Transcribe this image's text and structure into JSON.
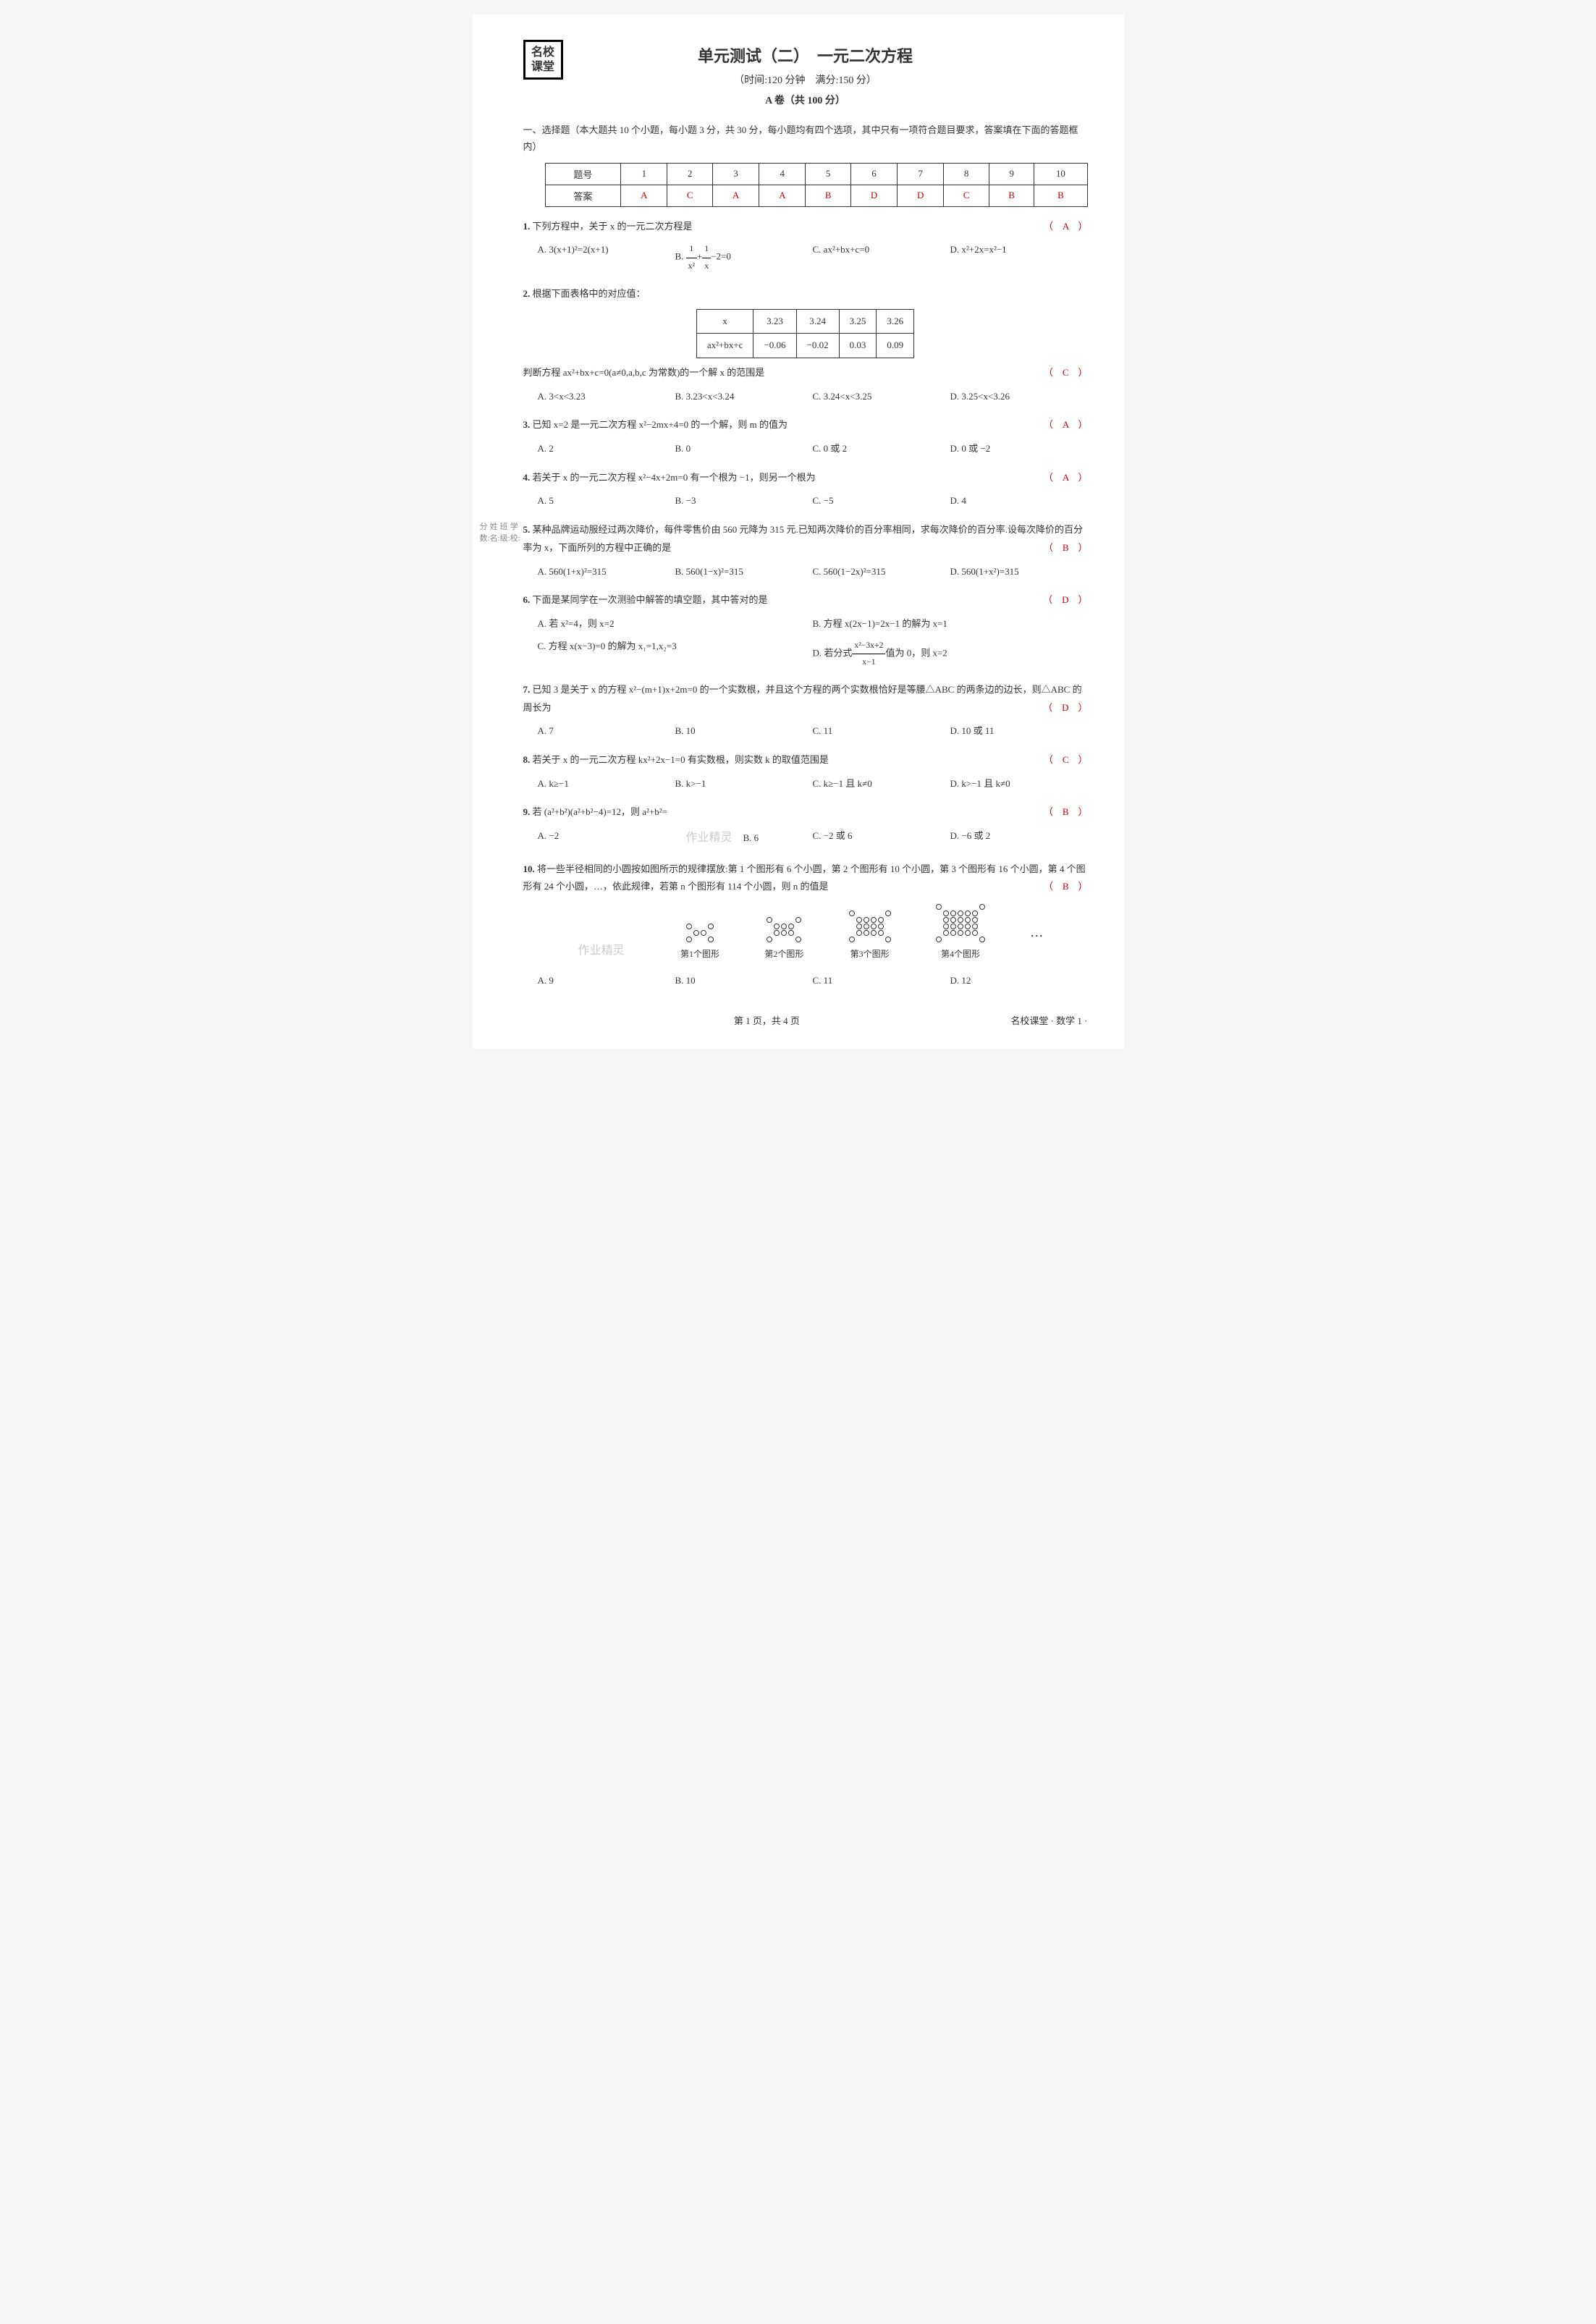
{
  "logo": "名校\n课堂",
  "title": "单元测试（二）　一元二次方程",
  "time_score": "（时间:120 分钟　满分:150 分）",
  "paper_a": "A 卷（共 100 分）",
  "section1_intro": "一、选择题（本大题共 10 个小题，每小题 3 分，共 30 分，每小题均有四个选项，其中只有一项符合题目要求，答案填在下面的答题框内）",
  "answer_table": {
    "header_label": "题号",
    "answer_label": "答案",
    "numbers": [
      "1",
      "2",
      "3",
      "4",
      "5",
      "6",
      "7",
      "8",
      "9",
      "10"
    ],
    "answers": [
      "A",
      "C",
      "A",
      "A",
      "B",
      "D",
      "D",
      "C",
      "B",
      "B"
    ]
  },
  "q1": {
    "num": "1.",
    "text": "下列方程中，关于 x 的一元二次方程是",
    "answer": "（　A　）",
    "optA": "A. 3(x+1)²=2(x+1)",
    "optB_pre": "B. ",
    "optB_f1n": "1",
    "optB_f1d": "x²",
    "optB_mid": "+",
    "optB_f2n": "1",
    "optB_f2d": "x",
    "optB_post": "−2=0",
    "optC": "C. ax²+bx+c=0",
    "optD": "D. x²+2x=x²−1"
  },
  "q2": {
    "num": "2.",
    "text": "根据下面表格中的对应值：",
    "table_h": "x",
    "table_row2_h": "ax²+bx+c",
    "x_vals": [
      "3.23",
      "3.24",
      "3.25",
      "3.26"
    ],
    "y_vals": [
      "−0.06",
      "−0.02",
      "0.03",
      "0.09"
    ],
    "text2": "判断方程 ax²+bx+c=0(a≠0,a,b,c 为常数)的一个解 x 的范围是",
    "answer": "（　C　）",
    "optA": "A. 3<x<3.23",
    "optB": "B. 3.23<x<3.24",
    "optC": "C. 3.24<x<3.25",
    "optD": "D. 3.25<x<3.26"
  },
  "q3": {
    "num": "3.",
    "text": "已知 x=2 是一元二次方程 x²−2mx+4=0 的一个解，则 m 的值为",
    "answer": "（　A　）",
    "optA": "A. 2",
    "optB": "B. 0",
    "optC": "C. 0 或 2",
    "optD": "D. 0 或 −2"
  },
  "q4": {
    "num": "4.",
    "text": "若关于 x 的一元二次方程 x²−4x+2m=0 有一个根为 −1，则另一个根为",
    "answer": "（　A　）",
    "optA": "A. 5",
    "optB": "B. −3",
    "optC": "C. −5",
    "optD": "D. 4"
  },
  "q5": {
    "num": "5.",
    "text": "某种品牌运动服经过两次降价，每件零售价由 560 元降为 315 元.已知两次降价的百分率相同，求每次降价的百分率.设每次降价的百分率为 x，下面所列的方程中正确的是",
    "answer": "（　B　）",
    "optA": "A. 560(1+x)²=315",
    "optB": "B. 560(1−x)²=315",
    "optC": "C. 560(1−2x)²=315",
    "optD": "D. 560(1+x²)=315"
  },
  "q6": {
    "num": "6.",
    "text": "下面是某同学在一次测验中解答的填空题，其中答对的是",
    "answer": "（　D　）",
    "optA": "A. 若 x²=4，则 x=2",
    "optB": "B. 方程 x(2x−1)=2x−1 的解为 x=1",
    "optC": "C. 方程 x(x−3)=0 的解为 x₁=1,x₂=3",
    "optD_pre": "D. 若分式",
    "optD_fn": "x²−3x+2",
    "optD_fd": "x−1",
    "optD_post": "值为 0，则 x=2"
  },
  "q7": {
    "num": "7.",
    "text": "已知 3 是关于 x 的方程 x²−(m+1)x+2m=0 的一个实数根，并且这个方程的两个实数根恰好是等腰△ABC 的两条边的边长，则△ABC 的周长为",
    "answer": "（　D　）",
    "optA": "A. 7",
    "optB": "B. 10",
    "optC": "C. 11",
    "optD": "D. 10 或 11"
  },
  "q8": {
    "num": "8.",
    "text": "若关于 x 的一元二次方程 kx²+2x−1=0 有实数根，则实数 k 的取值范围是",
    "answer": "（　C　）",
    "optA": "A. k≥−1",
    "optB": "B. k>−1",
    "optC": "C. k≥−1 且 k≠0",
    "optD": "D. k>−1 且 k≠0"
  },
  "q9": {
    "num": "9.",
    "text": "若 (a²+b²)(a²+b²−4)=12，则 a²+b²=",
    "answer": "（　B　）",
    "optA": "A. −2",
    "optB": "B. 6",
    "optC": "C. −2 或 6",
    "optD": "D. −6 或 2"
  },
  "q10": {
    "num": "10.",
    "text": "将一些半径相同的小圆按如图所示的规律摆放:第 1 个图形有 6 个小圆，第 2 个图形有 10 个小圆，第 3 个图形有 16 个小圆，第 4 个图形有 24 个小圆，…，依此规律，若第 n 个图形有 114 个小圆，则 n 的值是",
    "answer": "（　B　）",
    "fig1": "第1个图形",
    "fig2": "第2个图形",
    "fig3": "第3个图形",
    "fig4": "第4个图形",
    "optA": "A. 9",
    "optB": "B. 10",
    "optC": "C. 11",
    "optD": "D. 12"
  },
  "side": {
    "score": "分数:",
    "name": "姓名:",
    "class": "班级:",
    "school": "学校:"
  },
  "footer": {
    "page": "第 1 页，共 4 页",
    "right": "名校课堂 · 数学 1 ·"
  },
  "watermark": "作业精灵",
  "fig_patterns": {
    "p1": [
      [
        1,
        0,
        0,
        1
      ],
      [
        0,
        1,
        1,
        0
      ],
      [
        1,
        0,
        0,
        1
      ]
    ],
    "p2": [
      [
        1,
        0,
        0,
        0,
        1
      ],
      [
        0,
        1,
        1,
        1,
        0
      ],
      [
        0,
        1,
        1,
        1,
        0
      ],
      [
        1,
        0,
        0,
        0,
        1
      ]
    ],
    "p3": [
      [
        1,
        0,
        0,
        0,
        0,
        1
      ],
      [
        0,
        1,
        1,
        1,
        1,
        0
      ],
      [
        0,
        1,
        1,
        1,
        1,
        0
      ],
      [
        0,
        1,
        1,
        1,
        1,
        0
      ],
      [
        1,
        0,
        0,
        0,
        0,
        1
      ]
    ],
    "p4": [
      [
        1,
        0,
        0,
        0,
        0,
        0,
        1
      ],
      [
        0,
        1,
        1,
        1,
        1,
        1,
        0
      ],
      [
        0,
        1,
        1,
        1,
        1,
        1,
        0
      ],
      [
        0,
        1,
        1,
        1,
        1,
        1,
        0
      ],
      [
        0,
        1,
        1,
        1,
        1,
        1,
        0
      ],
      [
        1,
        0,
        0,
        0,
        0,
        0,
        1
      ]
    ]
  }
}
